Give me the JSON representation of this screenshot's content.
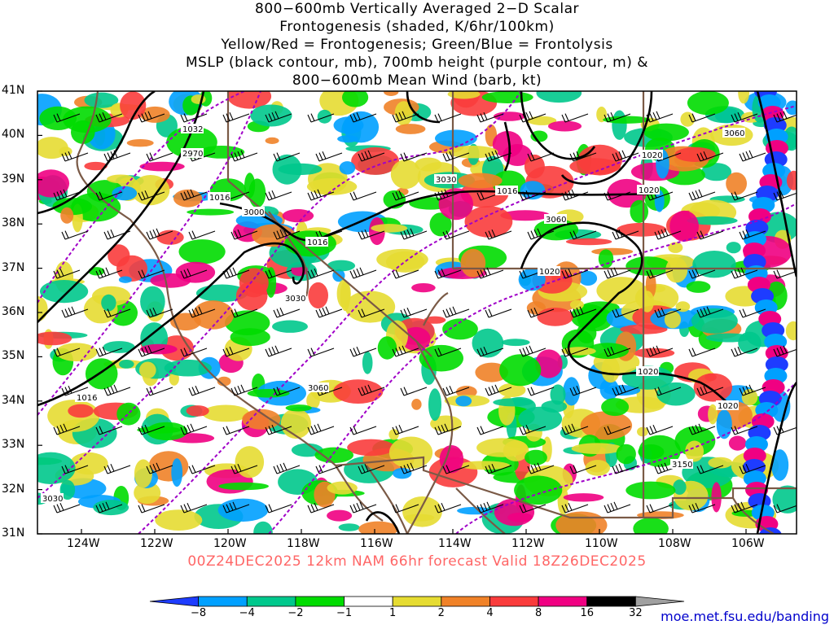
{
  "title": {
    "line1": "800−600mb Vertically Averaged 2−D Scalar",
    "line2": "Frontogenesis (shaded, K/6hr/100km)",
    "line3": "Yellow/Red = Frontogenesis;  Green/Blue = Frontolysis",
    "line4": "MSLP (black contour, mb), 700mb height (purple contour, m) &",
    "line5": "800−600mb Mean Wind (barb, kt)"
  },
  "valid_line": "00Z24DEC2025 12km NAM 66hr forecast Valid 18Z26DEC2025",
  "credit": "moe.met.fsu.edu/banding",
  "lat_labels": [
    "41N",
    "40N",
    "39N",
    "38N",
    "37N",
    "36N",
    "35N",
    "34N",
    "33N",
    "32N",
    "31N"
  ],
  "lon_labels": [
    "124W",
    "122W",
    "120W",
    "118W",
    "116W",
    "114W",
    "112W",
    "110W",
    "108W",
    "106W"
  ],
  "colorbar": {
    "labels": [
      "−8",
      "−4",
      "−2",
      "−1",
      "1",
      "2",
      "4",
      "8",
      "16",
      "32"
    ],
    "colors": [
      "#1e3cff",
      "#00a0ff",
      "#00c88c",
      "#00dc00",
      "#ffffff",
      "#e6dc32",
      "#f08228",
      "#fa3c3c",
      "#f00082",
      "#000000",
      "#a0a0a0"
    ]
  },
  "mslp_labels": [
    "1032",
    "1016",
    "1016",
    "1016",
    "1020",
    "1020",
    "1020",
    "1020",
    "1016",
    "1020"
  ],
  "height_labels": [
    "2970",
    "3000",
    "3030",
    "3030",
    "3060",
    "3060",
    "3060",
    "3150",
    "3030"
  ],
  "colors": {
    "mslp": "#000000",
    "height": "#a000c8",
    "borders": "#7a5a46",
    "valid_text": "#ff6666",
    "credit_text": "#0000cc"
  }
}
